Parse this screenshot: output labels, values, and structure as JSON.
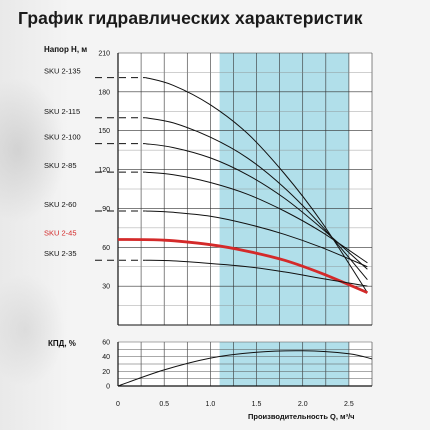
{
  "title": "График гидравлических характеристик",
  "chart_data": [
    {
      "type": "line",
      "ylabel": "Напор H, м",
      "xlabel": "Производительность Q, м³/ч",
      "ylim": [
        0,
        210
      ],
      "yticks": [
        30,
        60,
        90,
        120,
        150,
        180,
        210
      ],
      "xlim": [
        0,
        2.75
      ],
      "xticks": [
        0,
        0.5,
        1.0,
        1.5,
        2.0,
        2.5
      ],
      "xtick_labels": [
        "0",
        "0.5",
        "1.0",
        "1.5",
        "2.0",
        "2.5"
      ],
      "shaded_region_x": [
        1.1,
        2.5
      ],
      "highlight_color": "#d42a2a",
      "shade_color": "#a9dbe8",
      "series": [
        {
          "name": "SKU 2-135",
          "x": [
            0.3,
            0.6,
            1.0,
            1.4,
            1.8,
            2.2,
            2.7
          ],
          "y": [
            191,
            185,
            170,
            148,
            117,
            80,
            25
          ],
          "highlight": false
        },
        {
          "name": "SKU 2-115",
          "x": [
            0.3,
            0.6,
            1.0,
            1.4,
            1.8,
            2.2,
            2.7
          ],
          "y": [
            160,
            156,
            145,
            129,
            106,
            77,
            35
          ],
          "highlight": false
        },
        {
          "name": "SKU 2-100",
          "x": [
            0.3,
            0.6,
            1.0,
            1.4,
            1.8,
            2.2,
            2.7
          ],
          "y": [
            140,
            137,
            129,
            116,
            98,
            75,
            43
          ],
          "highlight": false
        },
        {
          "name": "SKU 2-85",
          "x": [
            0.3,
            0.6,
            1.0,
            1.4,
            1.8,
            2.2,
            2.7
          ],
          "y": [
            118,
            116,
            110,
            101,
            88,
            72,
            48
          ],
          "highlight": false
        },
        {
          "name": "SKU 2-60",
          "x": [
            0.3,
            0.6,
            1.0,
            1.4,
            1.8,
            2.2,
            2.7
          ],
          "y": [
            88,
            87,
            84,
            78,
            70,
            60,
            45
          ],
          "highlight": false
        },
        {
          "name": "SKU 2-45",
          "x": [
            0,
            0.5,
            1.0,
            1.4,
            1.8,
            2.2,
            2.7
          ],
          "y": [
            66,
            65.5,
            62,
            57,
            50,
            40,
            25
          ],
          "highlight": true
        },
        {
          "name": "SKU 2-35",
          "x": [
            0.3,
            0.6,
            1.0,
            1.4,
            1.8,
            2.2,
            2.7
          ],
          "y": [
            50,
            49.5,
            47.5,
            45,
            41,
            36,
            30
          ],
          "highlight": false
        }
      ]
    },
    {
      "type": "line",
      "ylabel": "КПД, %",
      "ylim": [
        0,
        60
      ],
      "yticks": [
        0,
        20,
        40,
        60
      ],
      "ytick_labels": [
        "0",
        "20",
        "40",
        "60"
      ],
      "series": [
        {
          "x": [
            0,
            0.5,
            1.0,
            1.5,
            2.0,
            2.5,
            2.75
          ],
          "y": [
            0,
            22,
            38,
            46,
            48,
            44,
            37
          ]
        }
      ]
    }
  ]
}
